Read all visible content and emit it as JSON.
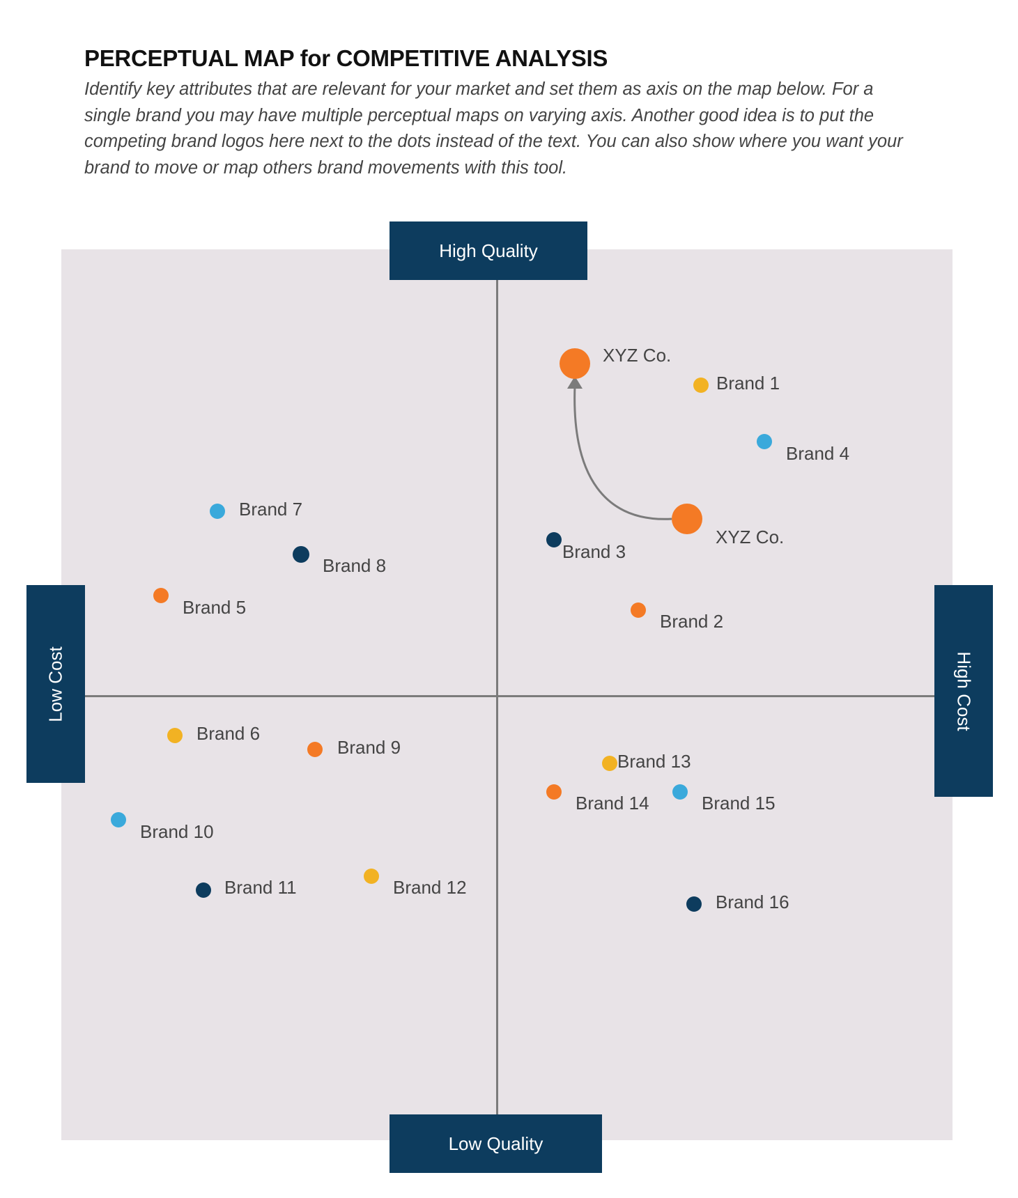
{
  "header": {
    "title": "PERCEPTUAL MAP for COMPETITIVE ANALYSIS",
    "description": "Identify key attributes that are relevant for your market and set them as axis on the map below. For a single brand you may have multiple perceptual maps on varying axis. Another good idea is to put the competing brand logos here next to the dots instead of the text. You can also show where you want your brand to move or map others brand movements with this tool."
  },
  "axes": {
    "top": "High Quality",
    "bottom": "Low Quality",
    "left": "Low Cost",
    "right": "High Cost"
  },
  "colors": {
    "axis_box": "#0d3c5e",
    "background": "#e8e3e7",
    "axis_line": "#7b7b7b",
    "orange": "#f47a25",
    "yellow": "#f2b223",
    "blue": "#3aa9db",
    "navy": "#0d3c5e",
    "arrow": "#7b7b7b"
  },
  "brands": [
    {
      "label": "XYZ Co.",
      "color": "orange",
      "major": true,
      "role": "target"
    },
    {
      "label": "XYZ Co.",
      "color": "orange",
      "major": true,
      "role": "current"
    },
    {
      "label": "Brand 1",
      "color": "yellow"
    },
    {
      "label": "Brand 2",
      "color": "orange"
    },
    {
      "label": "Brand 3",
      "color": "navy"
    },
    {
      "label": "Brand 4",
      "color": "blue"
    },
    {
      "label": "Brand 5",
      "color": "orange"
    },
    {
      "label": "Brand 6",
      "color": "yellow"
    },
    {
      "label": "Brand 7",
      "color": "blue"
    },
    {
      "label": "Brand 8",
      "color": "navy"
    },
    {
      "label": "Brand 9",
      "color": "orange"
    },
    {
      "label": "Brand 10",
      "color": "blue"
    },
    {
      "label": "Brand 11",
      "color": "navy"
    },
    {
      "label": "Brand 12",
      "color": "yellow"
    },
    {
      "label": "Brand 13",
      "color": "yellow"
    },
    {
      "label": "Brand 14",
      "color": "orange"
    },
    {
      "label": "Brand 15",
      "color": "blue"
    },
    {
      "label": "Brand 16",
      "color": "navy"
    }
  ],
  "movement": {
    "from": "current",
    "to": "target"
  }
}
